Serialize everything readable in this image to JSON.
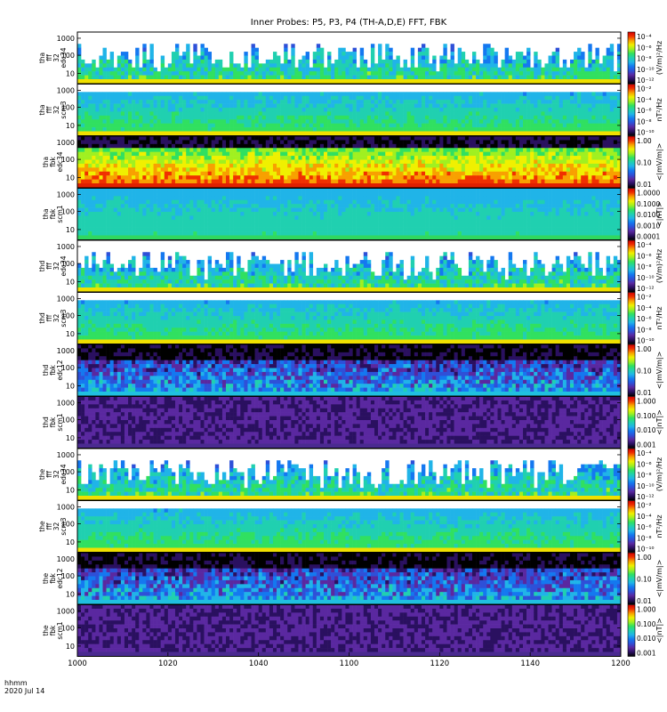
{
  "title": "Inner Probes: P5, P3, P4 (TH-A,D,E) FFT, FBK",
  "time_label": "hhmm",
  "date_label": "2020 Jul 14",
  "colors": {
    "scale": [
      "#000000",
      "#2a1060",
      "#5a28a0",
      "#2e50d8",
      "#1478f0",
      "#20b4e8",
      "#20d0b0",
      "#30e060",
      "#a0f020",
      "#f0f000",
      "#f8a000",
      "#f03000",
      "#d00000"
    ]
  },
  "chart_data": {
    "type": "heatmap",
    "x_ticks": [
      "1000",
      "1020",
      "1040",
      "1100",
      "1120",
      "1140",
      "1200"
    ],
    "y_ticks": [
      "1000",
      "100",
      "10"
    ],
    "panels": [
      {
        "ylabel": [
          "tha",
          "fff",
          "32",
          "edc34"
        ],
        "zlabel": "(V/m)²/Hz",
        "zticks": [
          "10⁻⁴",
          "10⁻⁶",
          "10⁻⁸",
          "10⁻¹⁰",
          "10⁻¹²"
        ],
        "level": 0.35,
        "style": "spiky-low",
        "bottom_band": "yellow"
      },
      {
        "ylabel": [
          "tha",
          "fff",
          "32",
          "scm3"
        ],
        "zlabel": "nT²/Hz",
        "zticks": [
          "10⁻²",
          "10⁻⁴",
          "10⁻⁶",
          "10⁻⁸",
          "10⁻¹⁰"
        ],
        "level": 0.45,
        "style": "banded-mid",
        "bottom_band": "yellow"
      },
      {
        "ylabel": [
          "tha",
          "fbk",
          "edc34"
        ],
        "zlabel": "<|mV/m|>",
        "zticks": [
          "1.00",
          "0.10",
          "0.01"
        ],
        "level": 0.75,
        "style": "hot",
        "bottom_band": "red"
      },
      {
        "ylabel": [
          "tha",
          "fbk",
          "scm1"
        ],
        "zlabel": "<|nT|>",
        "zticks": [
          "1.0000",
          "0.1000",
          "0.0100",
          "0.0010",
          "0.0001"
        ],
        "level": 0.4,
        "style": "uniform-cyan",
        "bottom_band": "green"
      },
      {
        "ylabel": [
          "thd",
          "fff",
          "32",
          "edc34"
        ],
        "zlabel": "(V/m)²/Hz",
        "zticks": [
          "10⁻⁴",
          "10⁻⁶",
          "10⁻⁸",
          "10⁻¹⁰",
          "10⁻¹²"
        ],
        "level": 0.35,
        "style": "spiky-low",
        "bottom_band": "yellow"
      },
      {
        "ylabel": [
          "thd",
          "fff",
          "32",
          "scm3"
        ],
        "zlabel": "nT²/Hz",
        "zticks": [
          "10⁻²",
          "10⁻⁴",
          "10⁻⁶",
          "10⁻⁸",
          "10⁻¹⁰"
        ],
        "level": 0.45,
        "style": "banded-mid",
        "bottom_band": "yellow"
      },
      {
        "ylabel": [
          "thd",
          "fbk",
          "edc12"
        ],
        "zlabel": "<|mV/m|>",
        "zticks": [
          "1.00",
          "0.10",
          "0.01"
        ],
        "level": 0.3,
        "style": "dark-patchy",
        "bottom_band": "cyan"
      },
      {
        "ylabel": [
          "thd",
          "fbk",
          "scm1"
        ],
        "zlabel": "<|nT|>",
        "zticks": [
          "1.000",
          "0.100",
          "0.010",
          "0.001"
        ],
        "level": 0.12,
        "style": "dark-purple",
        "bottom_band": "purple"
      },
      {
        "ylabel": [
          "the",
          "fff",
          "32",
          "edc34"
        ],
        "zlabel": "(V/m)²/Hz",
        "zticks": [
          "10⁻⁴",
          "10⁻⁶",
          "10⁻⁸",
          "10⁻¹⁰",
          "10⁻¹²"
        ],
        "level": 0.35,
        "style": "spiky-low",
        "bottom_band": "yellow"
      },
      {
        "ylabel": [
          "the",
          "fff",
          "32",
          "scm3"
        ],
        "zlabel": "nT²/Hz",
        "zticks": [
          "10⁻²",
          "10⁻⁴",
          "10⁻⁶",
          "10⁻⁸",
          "10⁻¹⁰"
        ],
        "level": 0.45,
        "style": "banded-mid",
        "bottom_band": "yellow"
      },
      {
        "ylabel": [
          "the",
          "fbk",
          "edc12"
        ],
        "zlabel": "<|mV/m|>",
        "zticks": [
          "1.00",
          "0.10",
          "0.01"
        ],
        "level": 0.3,
        "style": "dark-patchy",
        "bottom_band": "cyan"
      },
      {
        "ylabel": [
          "the",
          "fbk",
          "scm1"
        ],
        "zlabel": "<|nT|>",
        "zticks": [
          "1.000",
          "0.100",
          "0.010",
          "0.001"
        ],
        "level": 0.12,
        "style": "dark-purple",
        "bottom_band": "purple"
      }
    ]
  }
}
